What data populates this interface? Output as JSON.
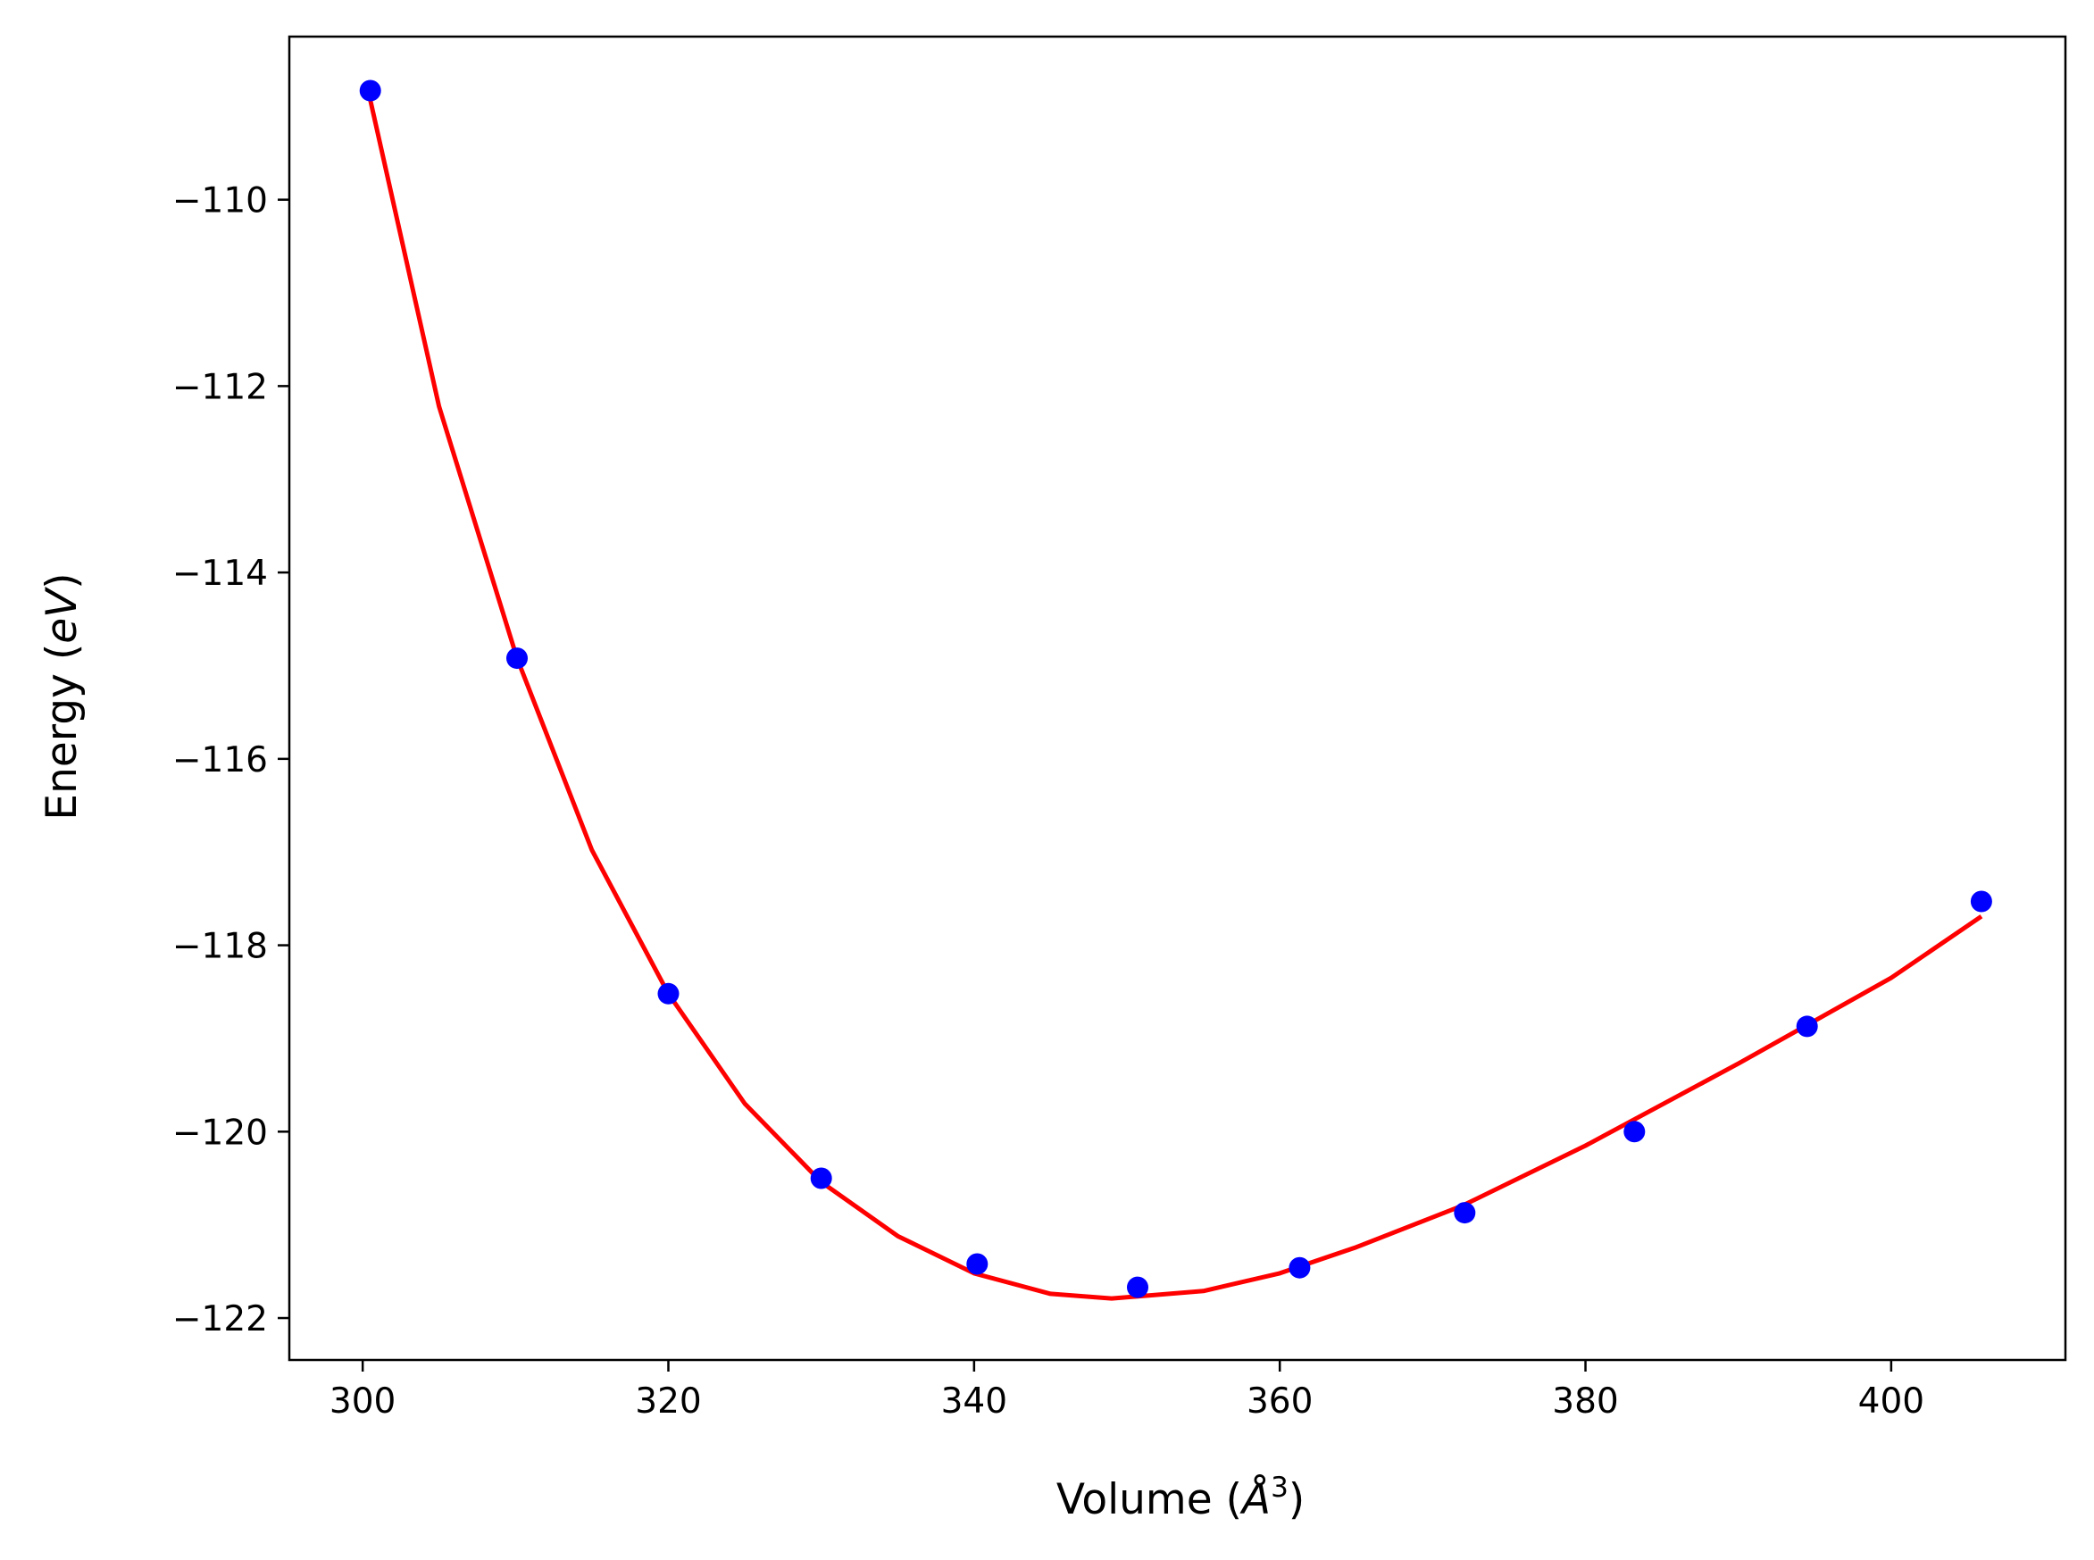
{
  "chart_data": {
    "type": "scatter",
    "xlabel": {
      "pre": "Volume (",
      "sym": "Å",
      "sup": "3",
      "post": ")"
    },
    "ylabel": {
      "pre": "Energy (",
      "ital": "eV",
      "post": ")"
    },
    "xlim": [
      295.2,
      411.4
    ],
    "ylim": [
      -122.45,
      -108.25
    ],
    "xticks": [
      300,
      320,
      340,
      360,
      380,
      400
    ],
    "yticks": [
      -110,
      -112,
      -114,
      -116,
      -118,
      -120,
      -122
    ],
    "xtick_labels": [
      "300",
      "320",
      "340",
      "360",
      "380",
      "400"
    ],
    "ytick_labels": [
      "−110",
      "−112",
      "−114",
      "−116",
      "−118",
      "−120",
      "−122"
    ],
    "grid": false,
    "colors": {
      "points": "#0000ff",
      "fit": "#ff0000",
      "axes": "#000000"
    },
    "series": [
      {
        "type": "scatter",
        "x": [
          300.5,
          310.1,
          320.0,
          330.0,
          340.2,
          350.7,
          361.3,
          372.1,
          383.2,
          394.5,
          405.9
        ],
        "y": [
          -108.83,
          -114.92,
          -118.52,
          -120.5,
          -121.42,
          -121.67,
          -121.46,
          -120.87,
          -120.0,
          -118.87,
          -117.53
        ]
      },
      {
        "type": "line",
        "x": [
          300.5,
          305,
          310.1,
          315,
          320,
          325,
          330,
          335,
          340,
          345,
          349,
          355,
          360,
          365,
          372,
          380,
          390,
          400,
          405.9
        ],
        "y": [
          -108.93,
          -112.22,
          -114.92,
          -116.98,
          -118.52,
          -119.7,
          -120.54,
          -121.12,
          -121.52,
          -121.74,
          -121.79,
          -121.71,
          -121.52,
          -121.24,
          -120.79,
          -120.15,
          -119.27,
          -118.35,
          -117.69
        ]
      }
    ]
  }
}
